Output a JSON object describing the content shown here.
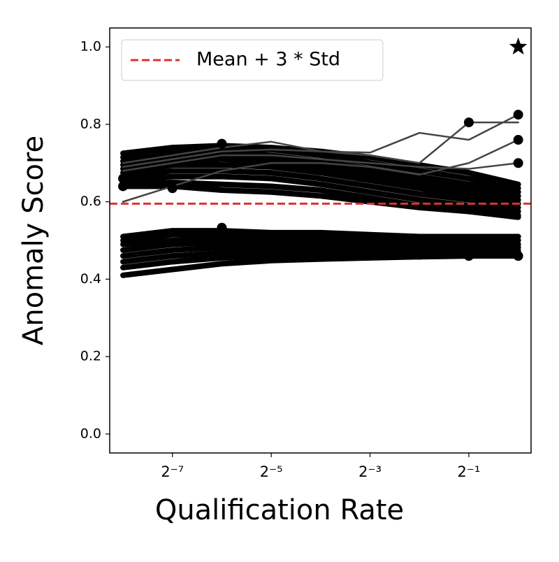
{
  "chart_data": {
    "type": "line",
    "xlabel": "Qualification Rate",
    "ylabel": "Anomaly Score",
    "x": [
      0.00390625,
      0.0078125,
      0.015625,
      0.03125,
      0.0625,
      0.125,
      0.25,
      0.5,
      1
    ],
    "xscale": "log2",
    "xlim": [
      0.00324,
      1.197
    ],
    "xticks": [
      {
        "value": 0.0078125,
        "label": "2⁻⁷"
      },
      {
        "value": 0.03125,
        "label": "2⁻⁵"
      },
      {
        "value": 0.125,
        "label": "2⁻³"
      },
      {
        "value": 0.5,
        "label": "2⁻¹"
      }
    ],
    "ylim": [
      -0.049,
      1.049
    ],
    "yticks": [
      {
        "value": 0,
        "label": "0.0"
      },
      0.2,
      0.4,
      0.6,
      0.8,
      {
        "value": 1,
        "label": "1.0"
      }
    ],
    "series": [
      {
        "color": "#000000",
        "values": [
          0.725,
          0.74,
          0.745,
          0.74,
          0.73,
          0.715,
          0.695,
          0.675,
          0.645
        ]
      },
      {
        "color": "#000000",
        "values": [
          0.715,
          0.735,
          0.74,
          0.735,
          0.72,
          0.7,
          0.68,
          0.66,
          0.635
        ]
      },
      {
        "color": "#000000",
        "values": [
          0.705,
          0.725,
          0.73,
          0.72,
          0.705,
          0.685,
          0.665,
          0.645,
          0.625
        ]
      },
      {
        "color": "#000000",
        "values": [
          0.695,
          0.715,
          0.72,
          0.71,
          0.695,
          0.675,
          0.655,
          0.635,
          0.615
        ]
      },
      {
        "color": "#000000",
        "values": [
          0.685,
          0.705,
          0.71,
          0.7,
          0.685,
          0.665,
          0.645,
          0.625,
          0.605
        ]
      },
      {
        "color": "#000000",
        "values": [
          0.675,
          0.695,
          0.695,
          0.69,
          0.675,
          0.655,
          0.635,
          0.615,
          0.595
        ]
      },
      {
        "color": "#000000",
        "values": [
          0.665,
          0.68,
          0.68,
          0.675,
          0.66,
          0.64,
          0.62,
          0.605,
          0.585
        ]
      },
      {
        "color": "#000000",
        "values": [
          0.655,
          0.665,
          0.665,
          0.66,
          0.645,
          0.625,
          0.605,
          0.59,
          0.575
        ]
      },
      {
        "color": "#000000",
        "values": [
          0.645,
          0.65,
          0.645,
          0.64,
          0.63,
          0.61,
          0.59,
          0.58,
          0.565
        ]
      },
      {
        "color": "#000000",
        "values": [
          0.64,
          0.64,
          0.63,
          0.625,
          0.615,
          0.6,
          0.585,
          0.575,
          0.56
        ]
      },
      {
        "color": "#000000",
        "values": [
          0.51,
          0.525,
          0.525,
          0.52,
          0.52,
          0.515,
          0.51,
          0.51,
          0.51
        ]
      },
      {
        "color": "#000000",
        "values": [
          0.5,
          0.515,
          0.515,
          0.512,
          0.51,
          0.505,
          0.5,
          0.5,
          0.5
        ]
      },
      {
        "color": "#000000",
        "values": [
          0.49,
          0.5,
          0.505,
          0.502,
          0.5,
          0.495,
          0.492,
          0.49,
          0.49
        ]
      },
      {
        "color": "#000000",
        "values": [
          0.475,
          0.49,
          0.495,
          0.492,
          0.49,
          0.487,
          0.485,
          0.483,
          0.482
        ]
      },
      {
        "color": "#000000",
        "values": [
          0.46,
          0.475,
          0.482,
          0.482,
          0.48,
          0.478,
          0.476,
          0.475,
          0.474
        ]
      },
      {
        "color": "#000000",
        "values": [
          0.445,
          0.46,
          0.468,
          0.47,
          0.47,
          0.47,
          0.468,
          0.467,
          0.467
        ]
      },
      {
        "color": "#000000",
        "values": [
          0.43,
          0.445,
          0.455,
          0.46,
          0.462,
          0.463,
          0.463,
          0.462,
          0.462
        ]
      },
      {
        "color": "#000000",
        "values": [
          0.41,
          0.425,
          0.44,
          0.448,
          0.452,
          0.455,
          0.458,
          0.46,
          0.46
        ]
      },
      {
        "color": "#444444",
        "values": [
          0.7,
          0.72,
          0.74,
          0.755,
          0.73,
          0.727,
          0.778,
          0.76,
          0.825
        ]
      },
      {
        "color": "#444444",
        "values": [
          0.69,
          0.71,
          0.73,
          0.735,
          0.73,
          0.72,
          0.7,
          0.805,
          0.805
        ]
      },
      {
        "color": "#444444",
        "values": [
          0.6,
          0.64,
          0.68,
          0.7,
          0.7,
          0.69,
          0.67,
          0.7,
          0.76
        ]
      },
      {
        "color": "#444444",
        "values": [
          0.68,
          0.7,
          0.72,
          0.72,
          0.71,
          0.7,
          0.69,
          0.685,
          0.7
        ]
      }
    ],
    "markers": {
      "x": [
        0.015625,
        0.5,
        1,
        1,
        1,
        0.015625,
        0.00390625,
        0.00390625,
        0.0078125,
        1,
        0.5,
        0.25,
        0.125
      ],
      "y": [
        0.75,
        0.805,
        0.825,
        0.76,
        0.7,
        0.533,
        0.64,
        0.66,
        0.635,
        0.46,
        0.46,
        0.463,
        0.463
      ],
      "color": "#000000"
    },
    "star": {
      "x": 1,
      "y": 1,
      "color": "#000000"
    },
    "threshold": {
      "name": "Mean + 3 * Std",
      "value": 0.595,
      "color": "#e03030"
    },
    "legend": "upper left"
  }
}
